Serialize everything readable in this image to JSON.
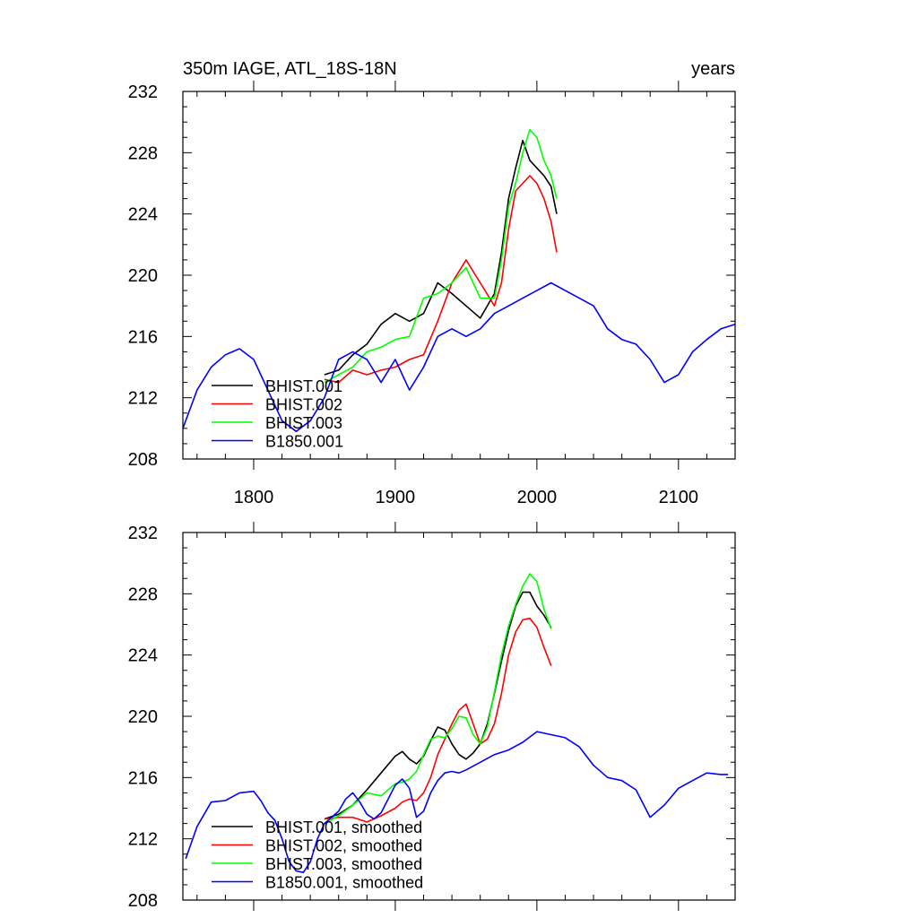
{
  "chart_data": [
    {
      "type": "line",
      "title_left": "350m IAGE, ATL_18S-18N",
      "title_right": "years",
      "xlim": [
        1750,
        2140
      ],
      "ylim": [
        208,
        232
      ],
      "xticks": [
        1800,
        1900,
        2000,
        2100
      ],
      "yticks": [
        208,
        212,
        216,
        220,
        224,
        228,
        232
      ],
      "xtick_labels": [
        "1800",
        "1900",
        "2000",
        "2100"
      ],
      "ytick_labels": [
        "208",
        "212",
        "216",
        "220",
        "224",
        "228",
        "232"
      ],
      "legend_position": "lower-left",
      "series": [
        {
          "name": "BHIST.001",
          "color": "#000000",
          "x": [
            1850,
            1860,
            1870,
            1880,
            1890,
            1900,
            1910,
            1920,
            1930,
            1940,
            1950,
            1960,
            1970,
            1975,
            1980,
            1985,
            1990,
            1995,
            2000,
            2005,
            2010,
            2014
          ],
          "y": [
            213.5,
            213.8,
            214.8,
            215.5,
            216.8,
            217.5,
            217.0,
            217.5,
            219.5,
            218.8,
            218.0,
            217.2,
            218.8,
            221.5,
            225.0,
            227.0,
            228.8,
            227.5,
            227.0,
            226.5,
            225.8,
            224.0
          ]
        },
        {
          "name": "BHIST.002",
          "color": "#ff0000",
          "x": [
            1850,
            1860,
            1870,
            1880,
            1890,
            1900,
            1910,
            1920,
            1930,
            1940,
            1950,
            1960,
            1970,
            1975,
            1980,
            1985,
            1990,
            1995,
            2000,
            2005,
            2010,
            2014
          ],
          "y": [
            213.2,
            213.0,
            213.8,
            213.5,
            213.8,
            214.0,
            214.5,
            214.8,
            217.0,
            219.5,
            221.0,
            219.5,
            218.0,
            219.5,
            223.0,
            225.5,
            226.0,
            226.5,
            226.0,
            225.0,
            223.5,
            221.5
          ]
        },
        {
          "name": "BHIST.003",
          "color": "#00ff00",
          "x": [
            1850,
            1860,
            1870,
            1880,
            1890,
            1900,
            1910,
            1920,
            1930,
            1940,
            1950,
            1960,
            1970,
            1975,
            1980,
            1985,
            1990,
            1995,
            2000,
            2005,
            2010,
            2014
          ],
          "y": [
            213.0,
            213.5,
            214.0,
            215.0,
            215.3,
            215.8,
            216.0,
            218.5,
            218.8,
            219.5,
            220.5,
            218.5,
            218.5,
            221.0,
            224.5,
            226.0,
            228.0,
            229.5,
            229.0,
            227.5,
            226.5,
            225.0
          ]
        },
        {
          "name": "B1850.001",
          "color": "#0000ff",
          "x": [
            1750,
            1760,
            1770,
            1780,
            1790,
            1800,
            1810,
            1820,
            1830,
            1840,
            1850,
            1860,
            1870,
            1880,
            1890,
            1900,
            1910,
            1920,
            1930,
            1940,
            1950,
            1960,
            1970,
            1980,
            1990,
            2000,
            2010,
            2020,
            2030,
            2040,
            2050,
            2060,
            2070,
            2080,
            2090,
            2100,
            2110,
            2120,
            2130,
            2140
          ],
          "y": [
            210.0,
            212.5,
            214.0,
            214.8,
            215.2,
            214.5,
            212.5,
            210.5,
            209.8,
            210.5,
            212.0,
            214.5,
            215.0,
            214.5,
            213.0,
            214.5,
            212.5,
            214.0,
            216.0,
            216.5,
            216.0,
            216.5,
            217.5,
            218.0,
            218.5,
            219.0,
            219.5,
            219.0,
            218.5,
            218.0,
            216.5,
            215.8,
            215.5,
            214.5,
            213.0,
            213.5,
            215.0,
            215.8,
            216.5,
            216.8
          ]
        }
      ]
    },
    {
      "type": "line",
      "xlim": [
        1750,
        2140
      ],
      "ylim": [
        208,
        232
      ],
      "xticks": [
        1800,
        1900,
        2000,
        2100
      ],
      "yticks": [
        208,
        212,
        216,
        220,
        224,
        228,
        232
      ],
      "ytick_labels": [
        "208",
        "212",
        "216",
        "220",
        "224",
        "228",
        "232"
      ],
      "legend_position": "lower-left",
      "series": [
        {
          "name": "BHIST.001, smoothed",
          "color": "#000000",
          "x": [
            1850,
            1860,
            1870,
            1880,
            1890,
            1900,
            1905,
            1910,
            1915,
            1920,
            1925,
            1930,
            1935,
            1940,
            1945,
            1950,
            1955,
            1960,
            1965,
            1970,
            1975,
            1980,
            1985,
            1990,
            1995,
            2000,
            2005,
            2010
          ],
          "y": [
            213.3,
            213.6,
            214.2,
            215.2,
            216.3,
            217.4,
            217.7,
            217.2,
            216.9,
            217.4,
            218.4,
            219.3,
            219.1,
            218.2,
            217.5,
            217.2,
            217.6,
            218.2,
            219.5,
            221.5,
            223.6,
            225.6,
            227.2,
            228.1,
            228.1,
            227.2,
            226.6,
            225.8
          ]
        },
        {
          "name": "BHIST.002, smoothed",
          "color": "#ff0000",
          "x": [
            1850,
            1860,
            1870,
            1880,
            1890,
            1900,
            1905,
            1910,
            1915,
            1920,
            1925,
            1930,
            1935,
            1940,
            1945,
            1950,
            1955,
            1960,
            1965,
            1970,
            1975,
            1980,
            1985,
            1990,
            1995,
            2000,
            2005,
            2010
          ],
          "y": [
            213.3,
            213.4,
            213.4,
            213.1,
            213.5,
            214.0,
            214.4,
            214.6,
            214.5,
            215.0,
            216.0,
            217.5,
            218.5,
            219.5,
            220.4,
            220.8,
            219.5,
            218.2,
            218.5,
            219.5,
            221.5,
            224.0,
            225.5,
            226.3,
            226.4,
            225.8,
            224.5,
            223.3
          ]
        },
        {
          "name": "BHIST.003, smoothed",
          "color": "#00ff00",
          "x": [
            1850,
            1860,
            1870,
            1880,
            1890,
            1900,
            1905,
            1910,
            1915,
            1920,
            1925,
            1930,
            1935,
            1940,
            1945,
            1950,
            1955,
            1960,
            1965,
            1970,
            1975,
            1980,
            1985,
            1990,
            1995,
            2000,
            2005,
            2010
          ],
          "y": [
            213.0,
            213.5,
            214.2,
            215.0,
            214.8,
            215.6,
            215.7,
            215.9,
            216.4,
            217.5,
            218.5,
            218.7,
            218.6,
            219.2,
            220.0,
            219.9,
            218.8,
            218.2,
            219.3,
            221.6,
            224.0,
            225.9,
            227.3,
            228.5,
            229.3,
            228.8,
            227.0,
            225.7
          ]
        },
        {
          "name": "B1850.001, smoothed",
          "color": "#0000ff",
          "x": [
            1752,
            1760,
            1770,
            1780,
            1790,
            1800,
            1805,
            1810,
            1815,
            1820,
            1825,
            1830,
            1835,
            1840,
            1845,
            1850,
            1855,
            1860,
            1865,
            1870,
            1875,
            1880,
            1885,
            1890,
            1895,
            1900,
            1905,
            1910,
            1915,
            1920,
            1925,
            1930,
            1935,
            1940,
            1945,
            1950,
            1960,
            1970,
            1980,
            1990,
            2000,
            2010,
            2020,
            2030,
            2040,
            2050,
            2060,
            2070,
            2080,
            2090,
            2100,
            2110,
            2120,
            2130,
            2135
          ],
          "y": [
            210.7,
            212.8,
            214.4,
            214.5,
            215.0,
            215.1,
            214.5,
            213.7,
            213.2,
            212.0,
            210.5,
            209.9,
            209.8,
            210.5,
            212.0,
            213.0,
            213.4,
            213.8,
            214.6,
            215.0,
            214.4,
            213.6,
            213.3,
            213.7,
            214.6,
            215.5,
            215.9,
            215.3,
            213.4,
            213.8,
            215.0,
            215.8,
            216.3,
            216.4,
            216.3,
            216.5,
            217.0,
            217.5,
            217.8,
            218.3,
            219.0,
            218.8,
            218.6,
            218.0,
            216.8,
            216.0,
            215.8,
            215.2,
            213.4,
            214.2,
            215.3,
            215.8,
            216.3,
            216.2,
            216.2
          ]
        }
      ]
    }
  ]
}
